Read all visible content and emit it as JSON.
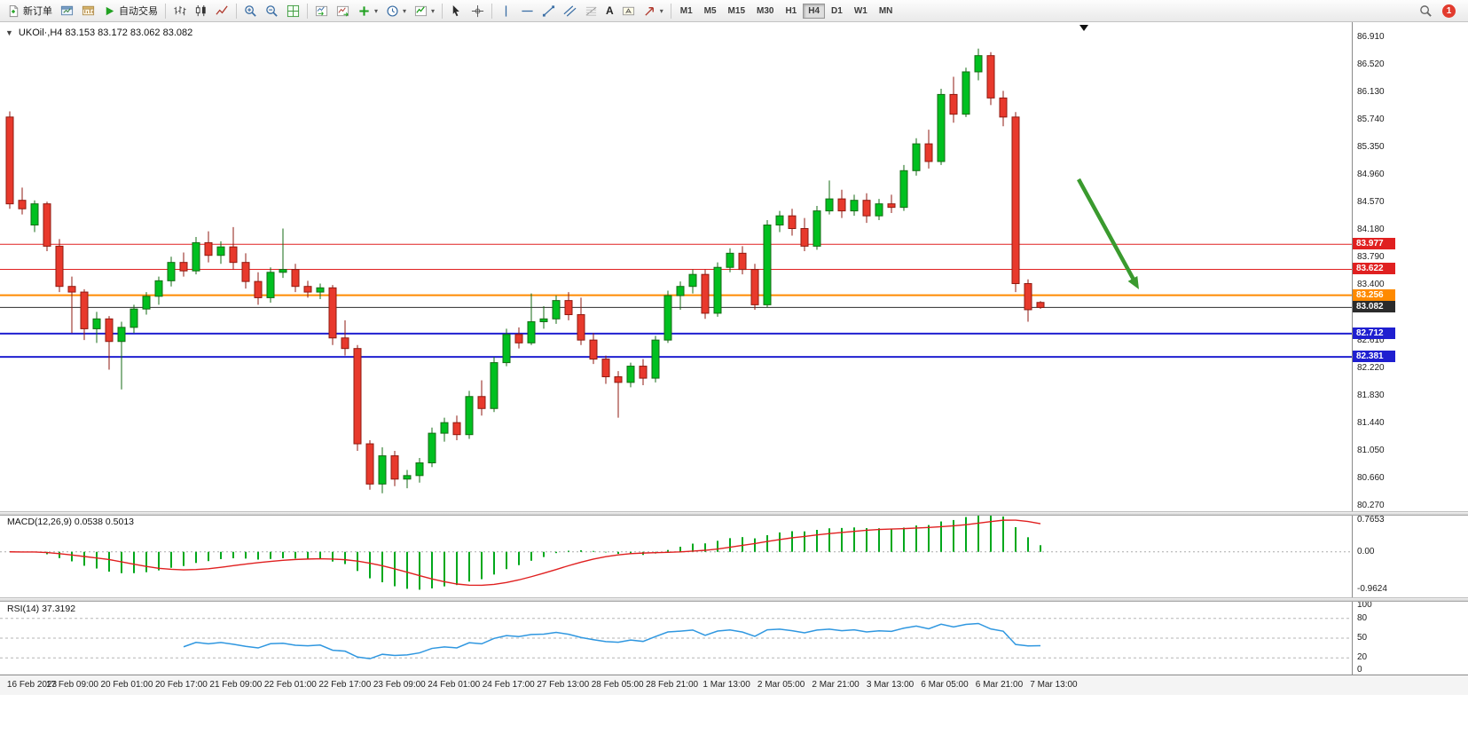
{
  "toolbar": {
    "new_order_label": "新订单",
    "autotrading_label": "自动交易",
    "text_tool_label": "A",
    "timeframes": [
      "M1",
      "M5",
      "M15",
      "M30",
      "H1",
      "H4",
      "D1",
      "W1",
      "MN"
    ],
    "active_timeframe": "H4",
    "notification_count": "1"
  },
  "chart": {
    "header": "UKOil·,H4  83.153 83.172 83.062 83.082",
    "up_color": "#00c020",
    "up_border": "#156b15",
    "down_color": "#e8392c",
    "down_border": "#8f1a10",
    "macd_color": "#00a81c",
    "macd_signal_color": "#e02020",
    "rsi_color": "#2f97e0",
    "arrow_color": "#3a9a2e",
    "price_axis_labels": [
      "86.910",
      "86.520",
      "86.130",
      "85.740",
      "85.350",
      "84.960",
      "84.570",
      "84.180",
      "83.790",
      "83.400",
      "82.610",
      "82.220",
      "81.830",
      "81.440",
      "81.050",
      "80.660",
      "80.270"
    ],
    "hlines": [
      {
        "price": 83.977,
        "label": "83.977",
        "color": "#e02020",
        "thickness": 1
      },
      {
        "price": 83.622,
        "label": "83.622",
        "color": "#e02020",
        "thickness": 1
      },
      {
        "price": 83.256,
        "label": "83.256",
        "color": "#ff8a00",
        "thickness": 2
      },
      {
        "price": 83.082,
        "label": "83.082",
        "color": "#2b2b2b",
        "thickness": 1
      },
      {
        "price": 82.712,
        "label": "82.712",
        "color": "#1f1fd0",
        "thickness": 2
      },
      {
        "price": 82.381,
        "label": "82.381",
        "color": "#1f1fd0",
        "thickness": 2
      }
    ]
  },
  "chart_data": {
    "type": "candlestick",
    "symbol": "UKOil",
    "timeframe": "H4",
    "ohlc_display": {
      "open": "83.153",
      "high": "83.172",
      "low": "83.062",
      "close": "83.082"
    },
    "ohlc": [
      [
        85.78,
        85.86,
        84.48,
        84.55
      ],
      [
        84.6,
        84.78,
        84.4,
        84.48
      ],
      [
        84.25,
        84.6,
        84.15,
        84.55
      ],
      [
        84.55,
        84.58,
        83.88,
        83.95
      ],
      [
        83.95,
        84.05,
        83.3,
        83.38
      ],
      [
        83.38,
        83.52,
        82.72,
        83.3
      ],
      [
        83.3,
        83.34,
        82.62,
        82.78
      ],
      [
        82.78,
        83.02,
        82.58,
        82.92
      ],
      [
        82.92,
        82.96,
        82.2,
        82.6
      ],
      [
        82.6,
        82.88,
        81.92,
        82.8
      ],
      [
        82.8,
        83.12,
        82.72,
        83.06
      ],
      [
        83.06,
        83.3,
        82.98,
        83.24
      ],
      [
        83.24,
        83.52,
        83.12,
        83.46
      ],
      [
        83.46,
        83.8,
        83.38,
        83.72
      ],
      [
        83.72,
        83.86,
        83.52,
        83.6
      ],
      [
        83.6,
        84.08,
        83.55,
        84.0
      ],
      [
        84.0,
        84.16,
        83.72,
        83.82
      ],
      [
        83.82,
        84.02,
        83.7,
        83.94
      ],
      [
        83.94,
        84.22,
        83.62,
        83.72
      ],
      [
        83.72,
        83.85,
        83.35,
        83.45
      ],
      [
        83.45,
        83.58,
        83.12,
        83.22
      ],
      [
        83.22,
        83.65,
        83.15,
        83.58
      ],
      [
        83.58,
        84.2,
        83.5,
        83.62
      ],
      [
        83.62,
        83.7,
        83.3,
        83.38
      ],
      [
        83.38,
        83.46,
        83.22,
        83.3
      ],
      [
        83.3,
        83.42,
        83.2,
        83.36
      ],
      [
        83.36,
        83.4,
        82.55,
        82.65
      ],
      [
        82.65,
        82.9,
        82.4,
        82.5
      ],
      [
        82.5,
        82.55,
        81.05,
        81.15
      ],
      [
        81.15,
        81.2,
        80.5,
        80.58
      ],
      [
        80.58,
        81.1,
        80.45,
        80.98
      ],
      [
        80.98,
        81.05,
        80.55,
        80.65
      ],
      [
        80.65,
        80.78,
        80.52,
        80.7
      ],
      [
        80.7,
        80.95,
        80.6,
        80.88
      ],
      [
        80.88,
        81.38,
        80.82,
        81.3
      ],
      [
        81.3,
        81.52,
        81.18,
        81.45
      ],
      [
        81.45,
        81.55,
        81.2,
        81.28
      ],
      [
        81.28,
        81.9,
        81.22,
        81.82
      ],
      [
        81.82,
        82.05,
        81.55,
        81.65
      ],
      [
        81.65,
        82.38,
        81.6,
        82.3
      ],
      [
        82.3,
        82.78,
        82.25,
        82.7
      ],
      [
        82.7,
        82.8,
        82.5,
        82.58
      ],
      [
        82.58,
        83.28,
        82.55,
        82.88
      ],
      [
        82.88,
        83.1,
        82.78,
        82.92
      ],
      [
        82.92,
        83.25,
        82.85,
        83.18
      ],
      [
        83.18,
        83.3,
        82.9,
        82.98
      ],
      [
        82.98,
        83.22,
        82.55,
        82.62
      ],
      [
        82.62,
        82.72,
        82.28,
        82.35
      ],
      [
        82.35,
        82.4,
        82.0,
        82.1
      ],
      [
        82.1,
        82.18,
        81.52,
        82.02
      ],
      [
        82.02,
        82.3,
        81.95,
        82.25
      ],
      [
        82.25,
        82.35,
        81.98,
        82.08
      ],
      [
        82.08,
        82.68,
        82.02,
        82.62
      ],
      [
        82.62,
        83.32,
        82.58,
        83.25
      ],
      [
        83.25,
        83.45,
        83.05,
        83.38
      ],
      [
        83.38,
        83.62,
        83.28,
        83.55
      ],
      [
        83.55,
        83.62,
        82.92,
        83.0
      ],
      [
        83.0,
        83.72,
        82.95,
        83.65
      ],
      [
        83.65,
        83.92,
        83.58,
        83.85
      ],
      [
        83.85,
        83.95,
        83.55,
        83.62
      ],
      [
        83.62,
        83.7,
        83.05,
        83.12
      ],
      [
        83.12,
        84.32,
        83.08,
        84.25
      ],
      [
        84.25,
        84.45,
        84.15,
        84.38
      ],
      [
        84.38,
        84.48,
        84.1,
        84.2
      ],
      [
        84.2,
        84.35,
        83.88,
        83.95
      ],
      [
        83.95,
        84.52,
        83.9,
        84.45
      ],
      [
        84.45,
        84.88,
        84.4,
        84.62
      ],
      [
        84.62,
        84.75,
        84.35,
        84.45
      ],
      [
        84.45,
        84.68,
        84.38,
        84.6
      ],
      [
        84.6,
        84.7,
        84.28,
        84.38
      ],
      [
        84.38,
        84.62,
        84.32,
        84.55
      ],
      [
        84.55,
        84.68,
        84.42,
        84.5
      ],
      [
        84.5,
        85.1,
        84.45,
        85.02
      ],
      [
        85.02,
        85.48,
        84.95,
        85.4
      ],
      [
        85.4,
        85.6,
        85.05,
        85.15
      ],
      [
        85.15,
        86.18,
        85.1,
        86.1
      ],
      [
        86.1,
        86.35,
        85.7,
        85.82
      ],
      [
        85.82,
        86.48,
        85.78,
        86.42
      ],
      [
        86.42,
        86.75,
        86.3,
        86.65
      ],
      [
        86.65,
        86.7,
        85.95,
        86.05
      ],
      [
        86.05,
        86.15,
        85.65,
        85.78
      ],
      [
        85.78,
        85.85,
        83.3,
        83.42
      ],
      [
        83.42,
        83.48,
        82.88,
        83.05
      ],
      [
        83.153,
        83.172,
        83.062,
        83.082
      ]
    ]
  },
  "macd_panel": {
    "title": "MACD(12,26,9) 0.0538 0.5013",
    "params": [
      12,
      26,
      9
    ],
    "max_label": "0.7653",
    "zero_label": "0.00",
    "min_label": "-0.9624"
  },
  "rsi_panel": {
    "title": "RSI(14) 37.3192",
    "period": 14,
    "value": "37.3192",
    "scale_labels": [
      "100",
      "80",
      "50",
      "20",
      "0"
    ],
    "levels": [
      80,
      50,
      20
    ]
  },
  "time_axis": {
    "labels": [
      "16 Feb 2023",
      "17 Feb 09:00",
      "20 Feb 01:00",
      "20 Feb 17:00",
      "21 Feb 09:00",
      "22 Feb 01:00",
      "22 Feb 17:00",
      "23 Feb 09:00",
      "24 Feb 01:00",
      "24 Feb 17:00",
      "27 Feb 13:00",
      "28 Feb 05:00",
      "28 Feb 21:00",
      "1 Mar 13:00",
      "2 Mar 05:00",
      "2 Mar 21:00",
      "3 Mar 13:00",
      "6 Mar 05:00",
      "6 Mar 21:00",
      "7 Mar 13:00"
    ]
  }
}
